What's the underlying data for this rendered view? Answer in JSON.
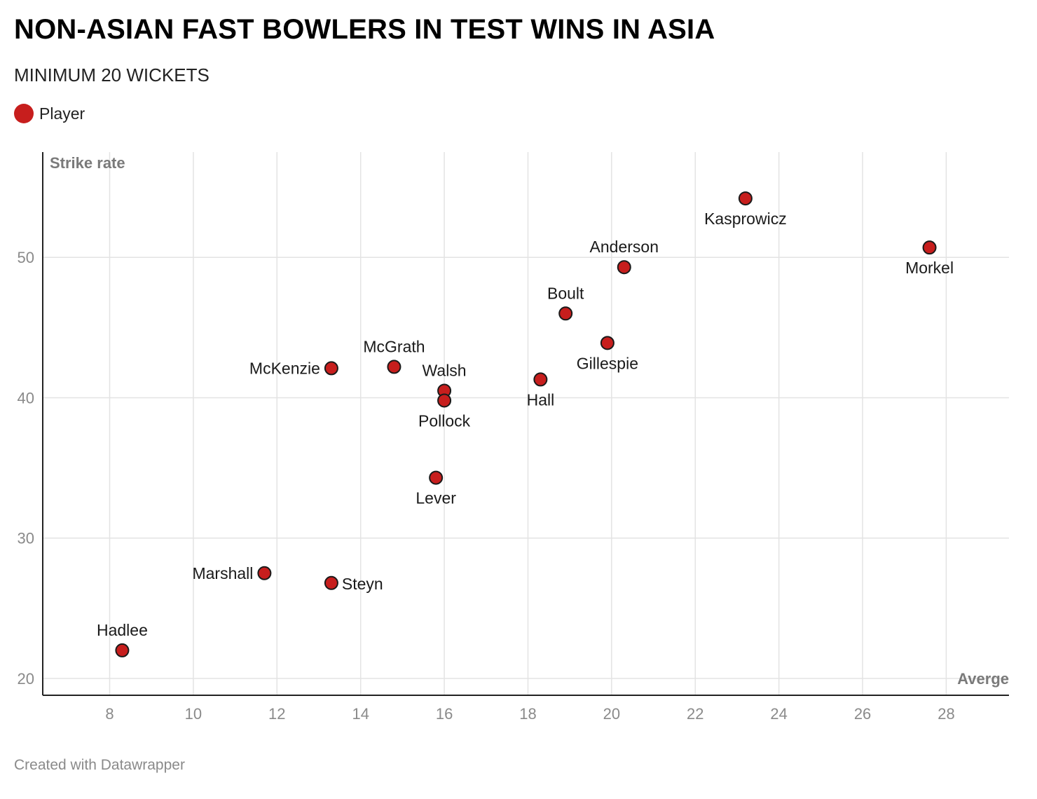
{
  "title": "NON-ASIAN FAST BOWLERS IN TEST WINS IN ASIA",
  "subtitle": "MINIMUM 20 WICKETS",
  "legend": {
    "label": "Player",
    "color": "#c71e1d"
  },
  "footer": "Created with Datawrapper",
  "chart_data": {
    "type": "scatter",
    "xlabel": "Averge",
    "ylabel": "Strike rate",
    "xlim": [
      6.4,
      29.5
    ],
    "ylim": [
      18.8,
      57.5
    ],
    "xticks": [
      8,
      10,
      12,
      14,
      16,
      18,
      20,
      22,
      24,
      26,
      28
    ],
    "yticks": [
      20,
      30,
      40,
      50
    ],
    "grid": true,
    "legend_position": "top-left",
    "point_color": "#c71e1d",
    "series": [
      {
        "name": "Player",
        "points": [
          {
            "label": "Kasprowicz",
            "x": 23.2,
            "y": 54.2,
            "label_pos": "below"
          },
          {
            "label": "Morkel",
            "x": 27.6,
            "y": 50.7,
            "label_pos": "below"
          },
          {
            "label": "Anderson",
            "x": 20.3,
            "y": 49.3,
            "label_pos": "above"
          },
          {
            "label": "Boult",
            "x": 18.9,
            "y": 46.0,
            "label_pos": "above"
          },
          {
            "label": "Gillespie",
            "x": 19.9,
            "y": 43.9,
            "label_pos": "below"
          },
          {
            "label": "McGrath",
            "x": 14.8,
            "y": 42.2,
            "label_pos": "above"
          },
          {
            "label": "McKenzie",
            "x": 13.3,
            "y": 42.1,
            "label_pos": "left"
          },
          {
            "label": "Walsh",
            "x": 16.0,
            "y": 40.5,
            "label_pos": "above"
          },
          {
            "label": "Pollock",
            "x": 16.0,
            "y": 39.8,
            "label_pos": "below"
          },
          {
            "label": "Hall",
            "x": 18.3,
            "y": 41.3,
            "label_pos": "below"
          },
          {
            "label": "Lever",
            "x": 15.8,
            "y": 34.3,
            "label_pos": "below"
          },
          {
            "label": "Marshall",
            "x": 11.7,
            "y": 27.5,
            "label_pos": "left"
          },
          {
            "label": "Steyn",
            "x": 13.3,
            "y": 26.8,
            "label_pos": "right"
          },
          {
            "label": "Hadlee",
            "x": 8.3,
            "y": 22.0,
            "label_pos": "above"
          }
        ]
      }
    ]
  }
}
